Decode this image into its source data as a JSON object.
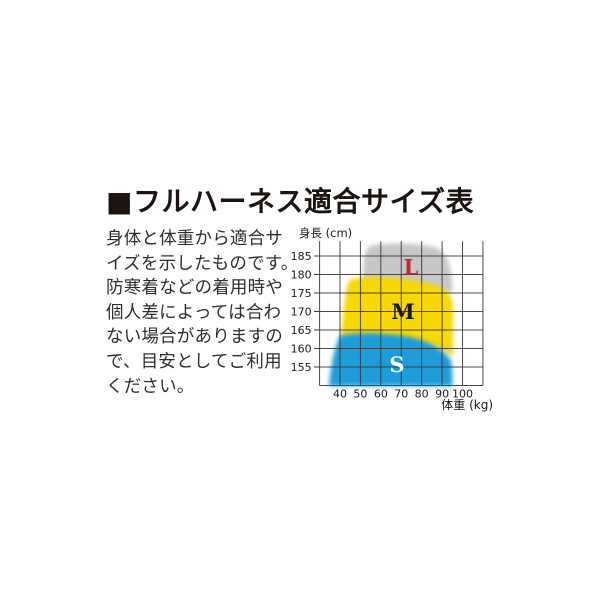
{
  "header": {
    "title": "■フルハーネス適合サイズ表"
  },
  "description": {
    "text": "身体と体重から適合サ\nイズを示したものです。\n防寒着などの着用時や\n個人差によっては合わ\nない場合がありますの\nで、目安としてご利用\nください。"
  },
  "chart_data": {
    "type": "area",
    "title": "フルハーネス適合サイズ表",
    "xlabel": "体重 (kg)",
    "ylabel": "身長 (cm)",
    "x_ticks": [
      40,
      50,
      60,
      70,
      80,
      90,
      100
    ],
    "y_ticks": [
      185,
      180,
      175,
      170,
      165,
      160,
      155
    ],
    "xlim": [
      30,
      110
    ],
    "ylim": [
      150,
      189
    ],
    "grid": true,
    "legend_position": "none",
    "colors": {
      "grid_line": "#383838",
      "axis_text": "#1a1a1a"
    },
    "regions": [
      {
        "label": "L",
        "fill_color": "#c7c7c7",
        "label_color": "#c9252c",
        "weight_range_kg": [
          50,
          95
        ],
        "height_range_cm": [
          178,
          188
        ]
      },
      {
        "label": "M",
        "fill_color": "#f7d800",
        "label_color": "#17172e",
        "weight_range_kg": [
          43,
          95
        ],
        "height_range_cm": [
          163,
          179
        ]
      },
      {
        "label": "S",
        "fill_color": "#1f9cd9",
        "label_color": "#ffffff",
        "weight_range_kg": [
          33,
          95
        ],
        "height_range_cm": [
          150,
          163
        ]
      }
    ]
  }
}
